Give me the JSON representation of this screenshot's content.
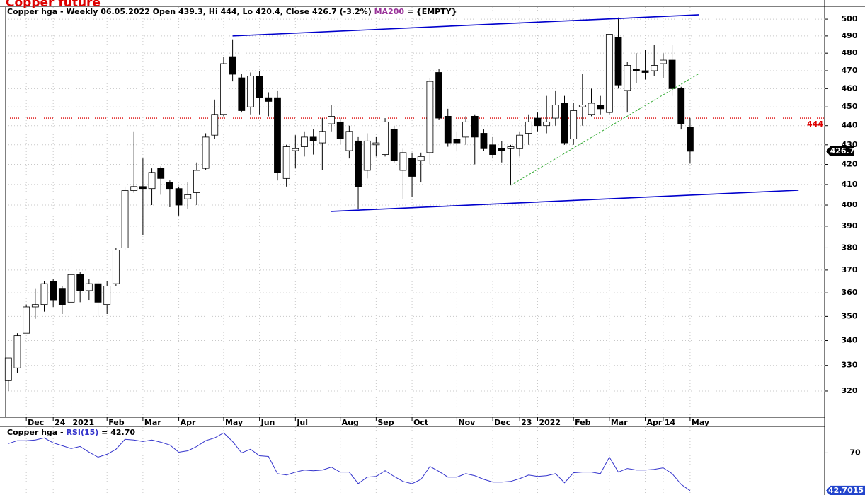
{
  "chart_data": [
    {
      "type": "candlestick",
      "title": "Copper future",
      "info": [
        "Copper hga - Weekly 06.05.2022 Open 439.3, Hi 444, Lo 420.4, Close 426.7 (-3.2%)",
        "MA200",
        "= {EMPTY}"
      ],
      "open": [
        324,
        329,
        343,
        354,
        355,
        365,
        362,
        356,
        368,
        361,
        364,
        355,
        364,
        380,
        407,
        409,
        408,
        418,
        411,
        408,
        403,
        406,
        418,
        435,
        446,
        478,
        466,
        450,
        467,
        455,
        455,
        413,
        427,
        429,
        434,
        431,
        441,
        442,
        427,
        432,
        417,
        430,
        425,
        438,
        417,
        423,
        422,
        426,
        469,
        445,
        433,
        434,
        445,
        436,
        430,
        428,
        428,
        428,
        436,
        444,
        440,
        444,
        452,
        433,
        450,
        446,
        451,
        447,
        489,
        459,
        471,
        470,
        470,
        474,
        476,
        460,
        439.3
      ],
      "high": [
        333,
        343,
        355,
        362,
        365,
        366,
        363,
        373,
        369,
        366,
        365,
        365,
        380,
        409,
        437,
        423,
        418,
        419,
        412,
        409,
        411,
        421,
        436,
        454,
        478,
        488,
        468,
        469,
        470,
        458,
        459,
        430,
        435,
        437,
        438,
        444,
        451,
        444,
        440,
        434,
        436,
        434,
        444,
        440,
        428,
        426,
        426,
        466,
        471,
        449,
        437,
        445,
        446,
        438,
        434,
        432,
        430,
        437,
        446,
        447,
        456,
        459,
        456,
        452,
        468,
        460,
        456,
        491,
        501,
        475,
        480,
        482,
        485,
        480,
        485,
        461,
        444
      ],
      "low": [
        320,
        327,
        343,
        349,
        352,
        354,
        351,
        354,
        356,
        357,
        350,
        351,
        363,
        379,
        406,
        386,
        400,
        405,
        399,
        395,
        398,
        400,
        417,
        433,
        445,
        464,
        447,
        446,
        446,
        445,
        412,
        409,
        418,
        424,
        425,
        417,
        437,
        430,
        423,
        398,
        413,
        424,
        424,
        421,
        403,
        404,
        411,
        420,
        443,
        429,
        427,
        430,
        420,
        427,
        423,
        421,
        410,
        424,
        430,
        437,
        436,
        440,
        430,
        430,
        440,
        445,
        446,
        446,
        460,
        447,
        463,
        465,
        467,
        466,
        456,
        438,
        420.4
      ],
      "close": [
        333,
        342,
        354,
        355,
        364,
        357,
        355,
        368,
        361,
        364,
        356,
        363,
        379,
        407,
        409,
        408,
        416,
        413,
        408,
        400,
        405,
        417,
        434,
        446,
        474,
        468,
        448,
        467,
        455,
        453,
        416,
        429,
        428,
        434,
        432,
        437,
        445,
        433,
        437,
        409,
        432,
        431,
        442,
        422,
        426,
        414,
        424,
        464,
        444,
        431,
        431,
        442,
        434,
        428,
        425,
        427,
        429,
        435,
        442,
        440,
        442,
        451,
        431,
        448,
        451,
        452,
        449,
        491,
        462,
        473,
        470,
        469,
        473,
        476,
        460,
        441,
        426.7
      ],
      "up_color": "#ffffff",
      "down_color": "#000000",
      "xlim": [
        -0.3,
        91
      ],
      "xticks": [
        {
          "value": 2,
          "label": "Dec"
        },
        {
          "value": 5,
          "label": "24"
        },
        {
          "value": 7,
          "label": "2021"
        },
        {
          "value": 11,
          "label": "Feb"
        },
        {
          "value": 15,
          "label": "Mar"
        },
        {
          "value": 19,
          "label": "Apr"
        },
        {
          "value": 24,
          "label": "May"
        },
        {
          "value": 28,
          "label": "Jun"
        },
        {
          "value": 32,
          "label": "Jul"
        },
        {
          "value": 37,
          "label": "Aug"
        },
        {
          "value": 41,
          "label": "Sep"
        },
        {
          "value": 45,
          "label": "Oct"
        },
        {
          "value": 50,
          "label": "Nov"
        },
        {
          "value": 54,
          "label": "Dec"
        },
        {
          "value": 57,
          "label": "23"
        },
        {
          "value": 59,
          "label": "2022"
        },
        {
          "value": 63,
          "label": "Feb"
        },
        {
          "value": 67,
          "label": "Mar"
        },
        {
          "value": 71,
          "label": "Apr"
        },
        {
          "value": 73,
          "label": "14"
        },
        {
          "value": 76,
          "label": "May"
        }
      ],
      "ylim": [
        310.1,
        507.3
      ],
      "log_scale": true,
      "yticks": [
        320,
        330,
        340,
        350,
        360,
        370,
        380,
        390,
        400,
        410,
        420,
        430,
        440,
        450,
        460,
        470,
        480,
        490,
        500
      ],
      "grid": true,
      "trend_lines": [
        {
          "x": [
            25,
            77
          ],
          "y": [
            490,
            502.6
          ],
          "color": "#0000cc",
          "style": "solid"
        },
        {
          "x": [
            36,
            88.1
          ],
          "y": [
            397,
            407.2
          ],
          "color": "#0000cc",
          "style": "solid"
        },
        {
          "x": [
            56,
            77
          ],
          "y": [
            409.6,
            468.4
          ],
          "color": "#33aa33",
          "style": "dashed"
        }
      ],
      "ref_line": {
        "value": 444,
        "color": "#dd0000"
      }
    },
    {
      "type": "line",
      "info": [
        "Copper hga - ",
        "RSI(15)",
        "= 42.70"
      ],
      "values": [
        76.7,
        78.8,
        78.8,
        79.3,
        80.8,
        77.2,
        75.2,
        73.1,
        74.6,
        70.5,
        66.9,
        69.0,
        72.6,
        79.8,
        79.3,
        78.2,
        79.3,
        77.7,
        75.7,
        70.5,
        71.5,
        74.6,
        78.8,
        80.8,
        84.4,
        78.2,
        70.0,
        72.6,
        67.9,
        67.4,
        55.0,
        54.0,
        56.1,
        57.6,
        57.1,
        57.6,
        59.7,
        56.1,
        56.1,
        47.8,
        52.5,
        53.0,
        57.1,
        53.0,
        49.4,
        47.8,
        50.9,
        60.2,
        56.6,
        52.5,
        52.5,
        55.0,
        53.5,
        50.9,
        48.9,
        48.9,
        49.4,
        51.4,
        54.0,
        53.0,
        53.5,
        55.0,
        48.4,
        55.6,
        56.1,
        56.1,
        55.0,
        66.9,
        56.1,
        58.7,
        57.6,
        57.6,
        58.1,
        59.2,
        55.0,
        47.3,
        42.7015
      ],
      "color": "#3333cc",
      "ylim": [
        39.6,
        88.6
      ],
      "yticks": [
        70
      ],
      "grid": true
    }
  ]
}
